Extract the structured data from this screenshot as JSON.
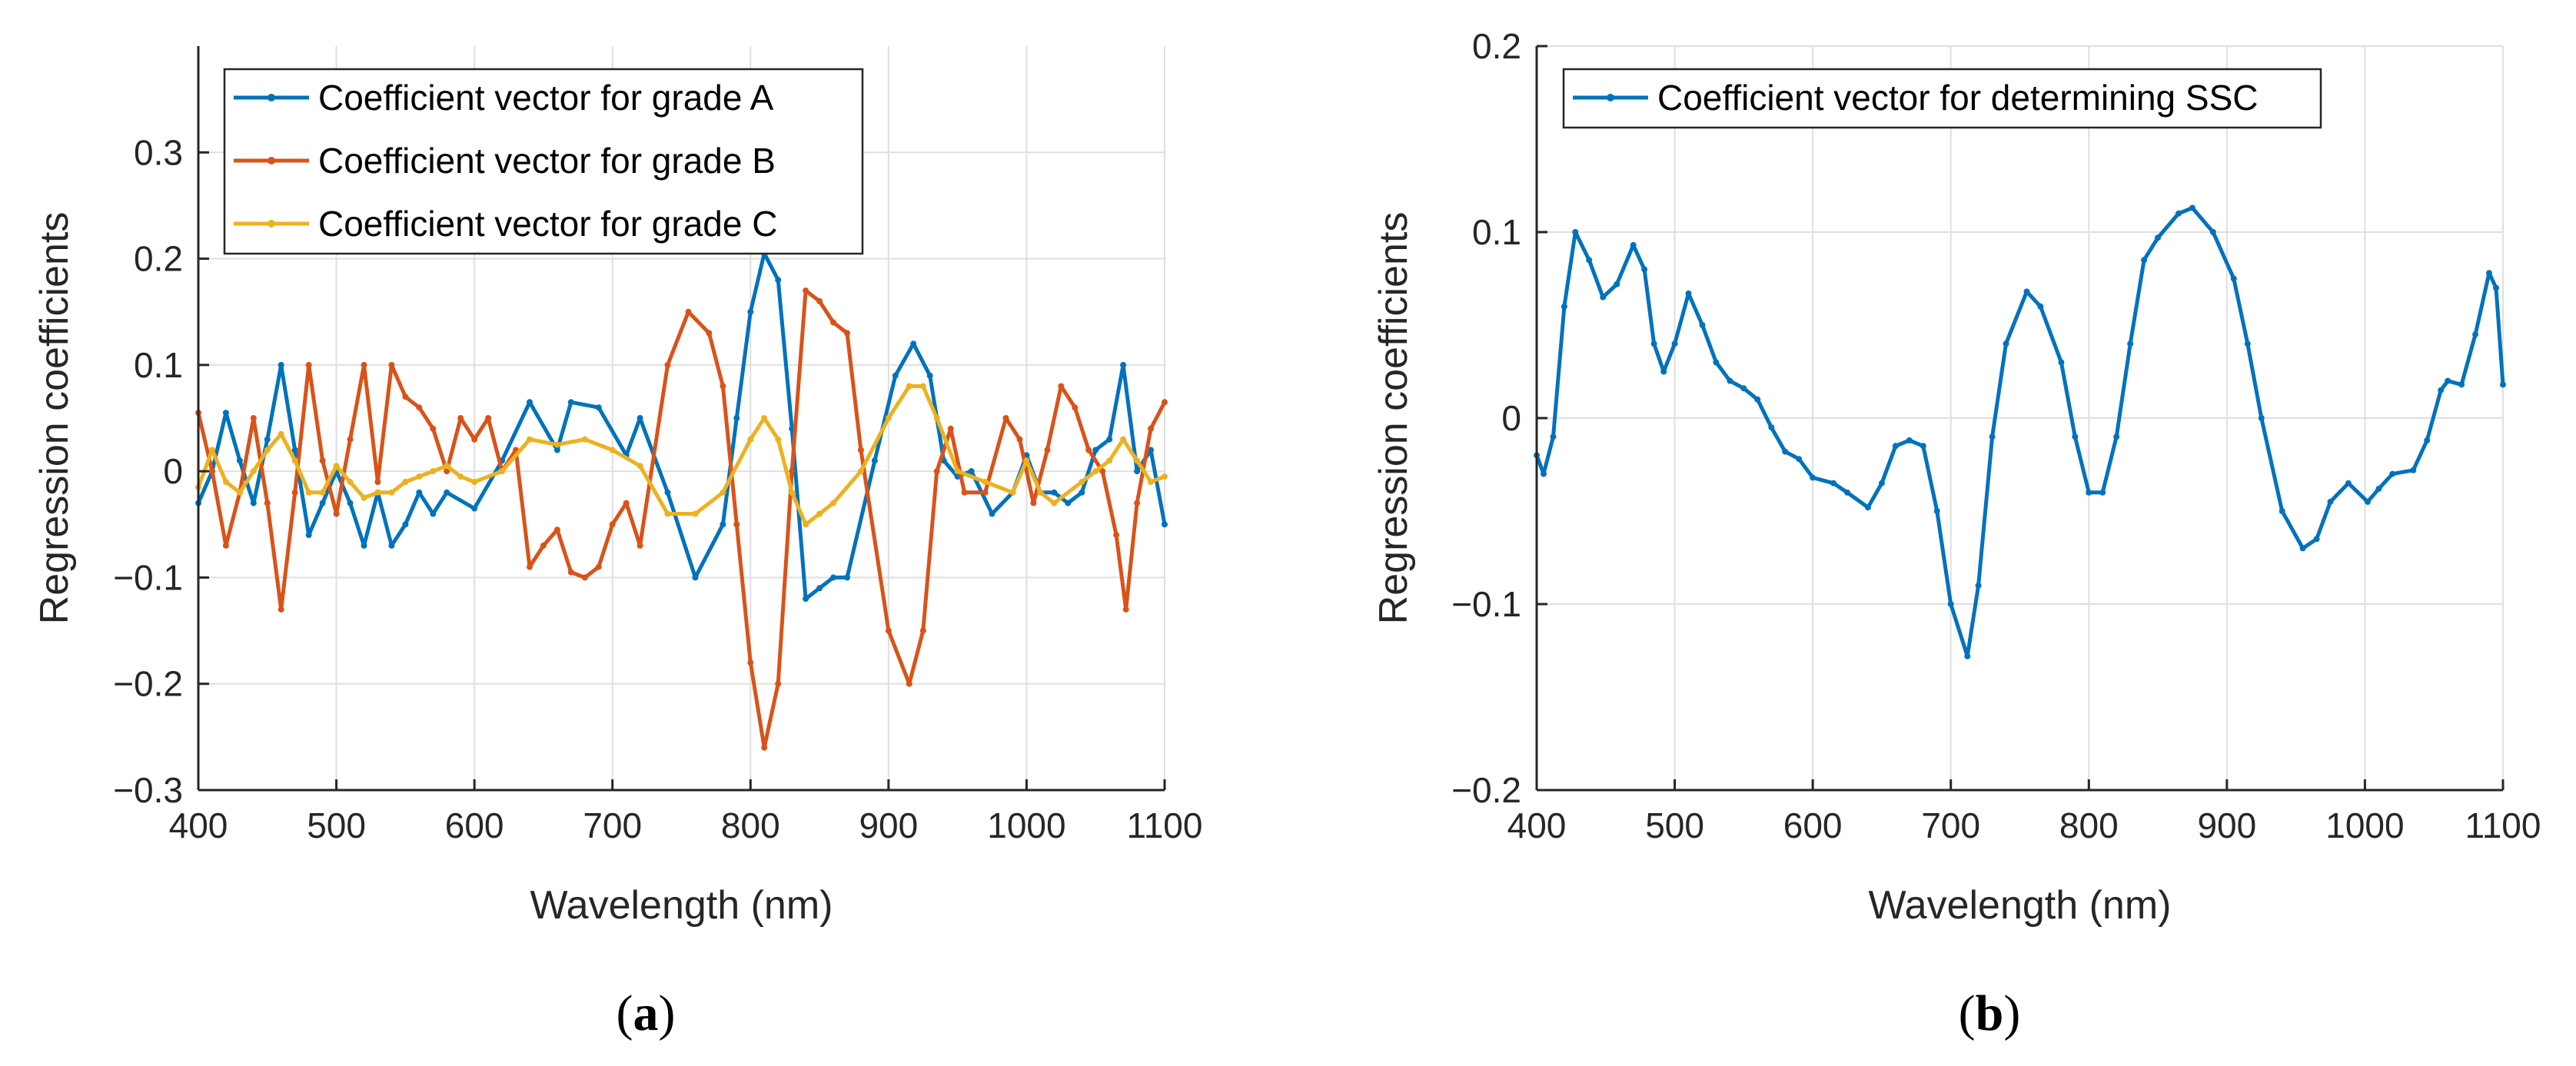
{
  "chart_data": [
    {
      "id": "a",
      "type": "line",
      "caption": "(a)",
      "caption_open": "(",
      "caption_letter": "a",
      "caption_close": ")",
      "xlabel": "Wavelength (nm)",
      "ylabel": "Regression coefficients",
      "xlim": [
        400,
        1100
      ],
      "ylim": [
        -0.3,
        0.4
      ],
      "xticks": [
        400,
        500,
        600,
        700,
        800,
        900,
        1000,
        1100
      ],
      "yticks": [
        -0.3,
        -0.2,
        -0.1,
        0,
        0.1,
        0.2,
        0.3
      ],
      "ytick_labels": [
        "−0.3",
        "−0.2",
        "−0.1",
        "0",
        "0.1",
        "0.2",
        "0.3"
      ],
      "grid": true,
      "legend_position": "top-left",
      "series": [
        {
          "name": "Coefficient vector for grade A",
          "color": "#0072BD",
          "points": [
            [
              400,
              -0.03
            ],
            [
              410,
              0.0
            ],
            [
              420,
              0.055
            ],
            [
              430,
              0.01
            ],
            [
              440,
              -0.03
            ],
            [
              450,
              0.03
            ],
            [
              460,
              0.1
            ],
            [
              470,
              0.02
            ],
            [
              480,
              -0.06
            ],
            [
              490,
              -0.03
            ],
            [
              500,
              0.0
            ],
            [
              510,
              -0.03
            ],
            [
              520,
              -0.07
            ],
            [
              530,
              -0.02
            ],
            [
              540,
              -0.07
            ],
            [
              550,
              -0.05
            ],
            [
              560,
              -0.02
            ],
            [
              570,
              -0.04
            ],
            [
              580,
              -0.02
            ],
            [
              600,
              -0.035
            ],
            [
              620,
              0.01
            ],
            [
              640,
              0.065
            ],
            [
              660,
              0.02
            ],
            [
              670,
              0.065
            ],
            [
              690,
              0.06
            ],
            [
              710,
              0.015
            ],
            [
              720,
              0.05
            ],
            [
              740,
              -0.02
            ],
            [
              760,
              -0.1
            ],
            [
              780,
              -0.05
            ],
            [
              790,
              0.05
            ],
            [
              800,
              0.15
            ],
            [
              810,
              0.205
            ],
            [
              820,
              0.18
            ],
            [
              830,
              0.04
            ],
            [
              840,
              -0.12
            ],
            [
              850,
              -0.11
            ],
            [
              860,
              -0.1
            ],
            [
              870,
              -0.1
            ],
            [
              890,
              0.01
            ],
            [
              905,
              0.09
            ],
            [
              918,
              0.12
            ],
            [
              930,
              0.09
            ],
            [
              940,
              0.01
            ],
            [
              950,
              -0.005
            ],
            [
              960,
              0.0
            ],
            [
              975,
              -0.04
            ],
            [
              990,
              -0.02
            ],
            [
              1000,
              0.015
            ],
            [
              1010,
              -0.02
            ],
            [
              1020,
              -0.02
            ],
            [
              1030,
              -0.03
            ],
            [
              1040,
              -0.02
            ],
            [
              1050,
              0.02
            ],
            [
              1060,
              0.03
            ],
            [
              1070,
              0.1
            ],
            [
              1080,
              0.0
            ],
            [
              1090,
              0.02
            ],
            [
              1100,
              -0.05
            ]
          ]
        },
        {
          "name": "Coefficient vector for grade B",
          "color": "#D95319",
          "points": [
            [
              400,
              0.055
            ],
            [
              410,
              0.0
            ],
            [
              420,
              -0.07
            ],
            [
              430,
              -0.02
            ],
            [
              440,
              0.05
            ],
            [
              450,
              -0.03
            ],
            [
              460,
              -0.13
            ],
            [
              470,
              -0.02
            ],
            [
              480,
              0.1
            ],
            [
              490,
              0.01
            ],
            [
              500,
              -0.04
            ],
            [
              510,
              0.03
            ],
            [
              520,
              0.1
            ],
            [
              530,
              -0.01
            ],
            [
              540,
              0.1
            ],
            [
              550,
              0.07
            ],
            [
              560,
              0.06
            ],
            [
              570,
              0.04
            ],
            [
              580,
              0.0
            ],
            [
              590,
              0.05
            ],
            [
              600,
              0.03
            ],
            [
              610,
              0.05
            ],
            [
              620,
              0.0
            ],
            [
              630,
              0.02
            ],
            [
              640,
              -0.09
            ],
            [
              650,
              -0.07
            ],
            [
              660,
              -0.055
            ],
            [
              670,
              -0.095
            ],
            [
              680,
              -0.1
            ],
            [
              690,
              -0.09
            ],
            [
              700,
              -0.05
            ],
            [
              710,
              -0.03
            ],
            [
              720,
              -0.07
            ],
            [
              740,
              0.1
            ],
            [
              755,
              0.15
            ],
            [
              770,
              0.13
            ],
            [
              780,
              0.08
            ],
            [
              790,
              -0.05
            ],
            [
              800,
              -0.18
            ],
            [
              810,
              -0.26
            ],
            [
              820,
              -0.2
            ],
            [
              830,
              0.0
            ],
            [
              840,
              0.17
            ],
            [
              850,
              0.16
            ],
            [
              860,
              0.14
            ],
            [
              870,
              0.13
            ],
            [
              880,
              0.02
            ],
            [
              900,
              -0.15
            ],
            [
              915,
              -0.2
            ],
            [
              925,
              -0.15
            ],
            [
              935,
              0.0
            ],
            [
              945,
              0.04
            ],
            [
              955,
              -0.02
            ],
            [
              970,
              -0.02
            ],
            [
              985,
              0.05
            ],
            [
              995,
              0.03
            ],
            [
              1005,
              -0.03
            ],
            [
              1015,
              0.02
            ],
            [
              1025,
              0.08
            ],
            [
              1035,
              0.06
            ],
            [
              1045,
              0.02
            ],
            [
              1055,
              0.0
            ],
            [
              1065,
              -0.06
            ],
            [
              1072,
              -0.13
            ],
            [
              1080,
              -0.03
            ],
            [
              1090,
              0.04
            ],
            [
              1100,
              0.065
            ]
          ]
        },
        {
          "name": "Coefficient vector for grade C",
          "color": "#EDB120",
          "points": [
            [
              400,
              -0.015
            ],
            [
              410,
              0.02
            ],
            [
              420,
              -0.01
            ],
            [
              430,
              -0.02
            ],
            [
              440,
              0.0
            ],
            [
              450,
              0.02
            ],
            [
              460,
              0.035
            ],
            [
              470,
              0.01
            ],
            [
              480,
              -0.02
            ],
            [
              490,
              -0.02
            ],
            [
              500,
              0.005
            ],
            [
              510,
              -0.01
            ],
            [
              520,
              -0.025
            ],
            [
              530,
              -0.02
            ],
            [
              540,
              -0.02
            ],
            [
              550,
              -0.01
            ],
            [
              560,
              -0.005
            ],
            [
              570,
              0.0
            ],
            [
              580,
              0.005
            ],
            [
              590,
              -0.005
            ],
            [
              600,
              -0.01
            ],
            [
              620,
              0.0
            ],
            [
              640,
              0.03
            ],
            [
              660,
              0.025
            ],
            [
              680,
              0.03
            ],
            [
              700,
              0.02
            ],
            [
              720,
              0.005
            ],
            [
              740,
              -0.04
            ],
            [
              760,
              -0.04
            ],
            [
              780,
              -0.02
            ],
            [
              800,
              0.03
            ],
            [
              810,
              0.05
            ],
            [
              820,
              0.03
            ],
            [
              830,
              -0.02
            ],
            [
              840,
              -0.05
            ],
            [
              850,
              -0.04
            ],
            [
              860,
              -0.03
            ],
            [
              880,
              0.0
            ],
            [
              900,
              0.05
            ],
            [
              915,
              0.08
            ],
            [
              925,
              0.08
            ],
            [
              935,
              0.05
            ],
            [
              950,
              0.0
            ],
            [
              970,
              -0.01
            ],
            [
              990,
              -0.02
            ],
            [
              1000,
              0.01
            ],
            [
              1010,
              -0.02
            ],
            [
              1020,
              -0.03
            ],
            [
              1040,
              -0.01
            ],
            [
              1050,
              0.0
            ],
            [
              1060,
              0.01
            ],
            [
              1070,
              0.03
            ],
            [
              1080,
              0.01
            ],
            [
              1090,
              -0.01
            ],
            [
              1100,
              -0.005
            ]
          ]
        }
      ]
    },
    {
      "id": "b",
      "type": "line",
      "caption": "(b)",
      "caption_open": "(",
      "caption_letter": "b",
      "caption_close": ")",
      "xlabel": "Wavelength (nm)",
      "ylabel": "Regression coefficients",
      "xlim": [
        400,
        1100
      ],
      "ylim": [
        -0.2,
        0.2
      ],
      "xticks": [
        400,
        500,
        600,
        700,
        800,
        900,
        1000,
        1100
      ],
      "yticks": [
        -0.2,
        -0.1,
        0,
        0.1,
        0.2
      ],
      "ytick_labels": [
        "−0.2",
        "−0.1",
        "0",
        "0.1",
        "0.2"
      ],
      "grid": true,
      "legend_position": "top-left",
      "series": [
        {
          "name": "Coefficient vector for determining SSC",
          "color": "#0072BD",
          "points": [
            [
              400,
              -0.02
            ],
            [
              405,
              -0.03
            ],
            [
              412,
              -0.01
            ],
            [
              420,
              0.06
            ],
            [
              428,
              0.1
            ],
            [
              438,
              0.085
            ],
            [
              448,
              0.065
            ],
            [
              458,
              0.072
            ],
            [
              470,
              0.093
            ],
            [
              478,
              0.08
            ],
            [
              485,
              0.04
            ],
            [
              492,
              0.025
            ],
            [
              500,
              0.04
            ],
            [
              510,
              0.067
            ],
            [
              520,
              0.05
            ],
            [
              530,
              0.03
            ],
            [
              540,
              0.02
            ],
            [
              550,
              0.016
            ],
            [
              560,
              0.01
            ],
            [
              570,
              -0.005
            ],
            [
              580,
              -0.018
            ],
            [
              590,
              -0.022
            ],
            [
              600,
              -0.032
            ],
            [
              615,
              -0.035
            ],
            [
              625,
              -0.04
            ],
            [
              640,
              -0.048
            ],
            [
              650,
              -0.035
            ],
            [
              660,
              -0.015
            ],
            [
              670,
              -0.012
            ],
            [
              680,
              -0.015
            ],
            [
              690,
              -0.05
            ],
            [
              700,
              -0.1
            ],
            [
              712,
              -0.128
            ],
            [
              720,
              -0.09
            ],
            [
              730,
              -0.01
            ],
            [
              740,
              0.04
            ],
            [
              755,
              0.068
            ],
            [
              765,
              0.06
            ],
            [
              780,
              0.03
            ],
            [
              790,
              -0.01
            ],
            [
              800,
              -0.04
            ],
            [
              810,
              -0.04
            ],
            [
              820,
              -0.01
            ],
            [
              830,
              0.04
            ],
            [
              840,
              0.085
            ],
            [
              850,
              0.097
            ],
            [
              865,
              0.11
            ],
            [
              875,
              0.113
            ],
            [
              890,
              0.1
            ],
            [
              905,
              0.075
            ],
            [
              915,
              0.04
            ],
            [
              925,
              0.0
            ],
            [
              940,
              -0.05
            ],
            [
              955,
              -0.07
            ],
            [
              965,
              -0.065
            ],
            [
              975,
              -0.045
            ],
            [
              988,
              -0.035
            ],
            [
              1002,
              -0.045
            ],
            [
              1010,
              -0.038
            ],
            [
              1020,
              -0.03
            ],
            [
              1035,
              -0.028
            ],
            [
              1045,
              -0.012
            ],
            [
              1055,
              0.015
            ],
            [
              1060,
              0.02
            ],
            [
              1070,
              0.018
            ],
            [
              1080,
              0.045
            ],
            [
              1090,
              0.078
            ],
            [
              1095,
              0.07
            ],
            [
              1100,
              0.018
            ]
          ]
        }
      ]
    }
  ]
}
